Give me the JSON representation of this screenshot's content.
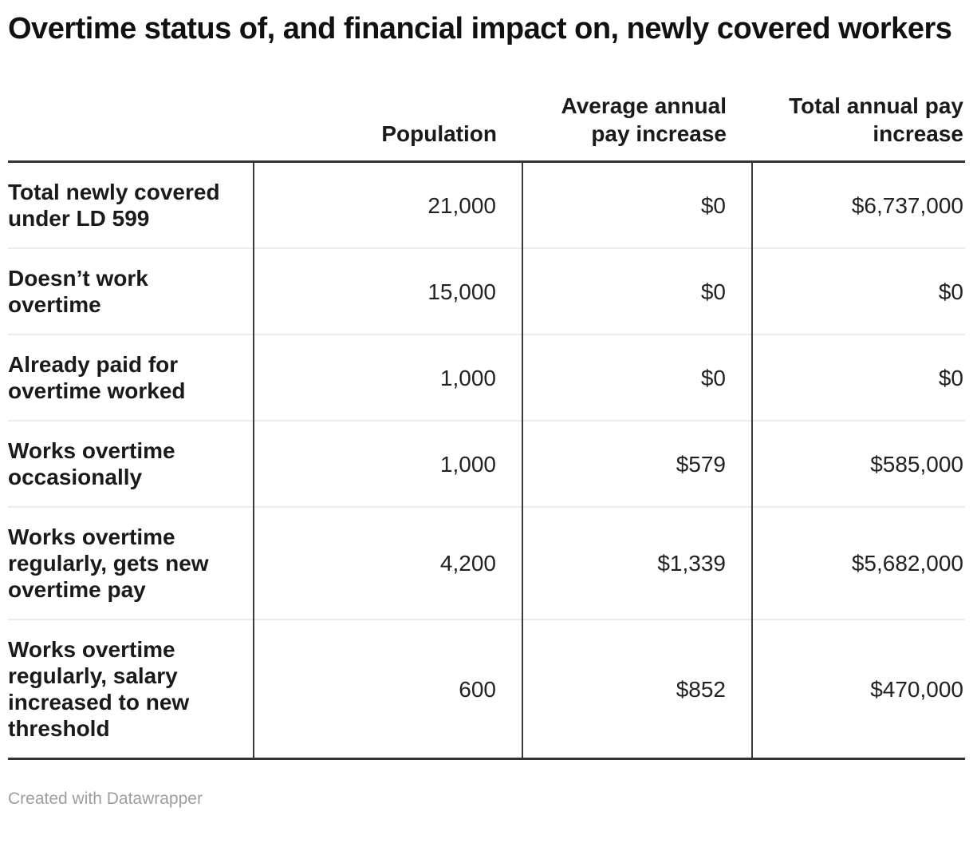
{
  "chart_data": {
    "type": "table",
    "title": "Overtime status of, and financial impact on, newly covered workers",
    "columns": [
      "",
      "Population",
      "Average annual pay increase",
      "Total annual pay increase"
    ],
    "rows": [
      {
        "label": "Total newly covered under LD 599",
        "population": 21000,
        "avg_annual_pay_increase_usd": 0,
        "total_annual_pay_increase_usd": 6737000,
        "display": [
          "21,000",
          "$0",
          "$6,737,000"
        ]
      },
      {
        "label": "Doesn’t work overtime",
        "population": 15000,
        "avg_annual_pay_increase_usd": 0,
        "total_annual_pay_increase_usd": 0,
        "display": [
          "15,000",
          "$0",
          "$0"
        ]
      },
      {
        "label": "Already paid for overtime worked",
        "population": 1000,
        "avg_annual_pay_increase_usd": 0,
        "total_annual_pay_increase_usd": 0,
        "display": [
          "1,000",
          "$0",
          "$0"
        ]
      },
      {
        "label": "Works overtime occasionally",
        "population": 1000,
        "avg_annual_pay_increase_usd": 579,
        "total_annual_pay_increase_usd": 585000,
        "display": [
          "1,000",
          "$579",
          "$585,000"
        ]
      },
      {
        "label": "Works overtime regularly, gets new overtime pay",
        "population": 4200,
        "avg_annual_pay_increase_usd": 1339,
        "total_annual_pay_increase_usd": 5682000,
        "display": [
          "4,200",
          "$1,339",
          "$5,682,000"
        ]
      },
      {
        "label": "Works overtime regularly, salary increased to new threshold",
        "population": 600,
        "avg_annual_pay_increase_usd": 852,
        "total_annual_pay_increase_usd": 470000,
        "display": [
          "600",
          "$852",
          "$470,000"
        ]
      }
    ],
    "layout": {
      "grid": "horizontal-and-vertical-rules",
      "numeric_alignment": "right",
      "header_rule_color": "#333333",
      "row_separator_color": "#ececec",
      "column_divider_color": "#3a3a3a"
    }
  },
  "footer": {
    "credit": "Created with Datawrapper"
  },
  "colors": {
    "background": "#ffffff",
    "text": "#1a1a1a",
    "title": "#111111",
    "dark_rule": "#333333",
    "light_separator": "#ececec",
    "footer_text": "#9e9e9e"
  }
}
